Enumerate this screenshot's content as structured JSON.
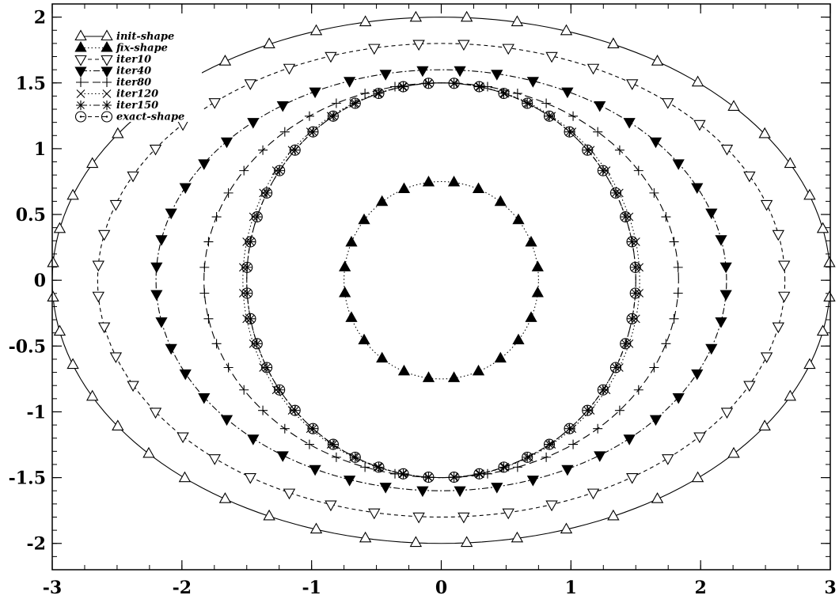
{
  "chart_data": {
    "type": "line",
    "title": "",
    "xlabel": "",
    "ylabel": "",
    "xlim": [
      -3,
      3
    ],
    "ylim": [
      -2.2,
      2.1
    ],
    "x_ticks": [
      "-3",
      "-2",
      "-1",
      "0",
      "1",
      "2",
      "3"
    ],
    "y_ticks": [
      "2",
      "1.5",
      "1",
      "0.5",
      "0",
      "-0.5",
      "-1",
      "-1.5",
      "-2"
    ],
    "legend_position": "top-left",
    "series": [
      {
        "name": "init-shape",
        "shape": "ellipse",
        "center": [
          0,
          0
        ],
        "a": 3.0,
        "b": 2.0,
        "n_points": 48,
        "marker": "triangle-up-open",
        "line": "solid",
        "color": "#000000"
      },
      {
        "name": "fix-shape",
        "shape": "ellipse",
        "center": [
          0,
          0
        ],
        "a": 0.75,
        "b": 0.75,
        "n_points": 24,
        "marker": "triangle-up-filled",
        "line": "dotted",
        "color": "#000000"
      },
      {
        "name": "iter10",
        "shape": "ellipse",
        "center": [
          0,
          0
        ],
        "a": 2.65,
        "b": 1.8,
        "n_points": 48,
        "marker": "triangle-down-open",
        "line": "dashed",
        "color": "#000000"
      },
      {
        "name": "iter40",
        "shape": "ellipse",
        "center": [
          0,
          0
        ],
        "a": 2.2,
        "b": 1.6,
        "n_points": 48,
        "marker": "triangle-down-filled",
        "line": "dashdot",
        "color": "#000000"
      },
      {
        "name": "iter80",
        "shape": "ellipse",
        "center": [
          0,
          0
        ],
        "a": 1.83,
        "b": 1.5,
        "n_points": 48,
        "marker": "plus",
        "line": "longdash",
        "color": "#000000"
      },
      {
        "name": "iter120",
        "shape": "ellipse",
        "center": [
          0,
          0
        ],
        "a": 1.53,
        "b": 1.5,
        "n_points": 48,
        "marker": "cross",
        "line": "dotted",
        "color": "#000000"
      },
      {
        "name": "iter150",
        "shape": "ellipse",
        "center": [
          0,
          0
        ],
        "a": 1.5,
        "b": 1.5,
        "n_points": 48,
        "marker": "star",
        "line": "dashdot",
        "color": "#000000"
      },
      {
        "name": "exact-shape",
        "shape": "ellipse",
        "center": [
          0,
          0
        ],
        "a": 1.5,
        "b": 1.5,
        "n_points": 48,
        "marker": "circle-open",
        "line": "dashed",
        "color": "#000000"
      }
    ]
  }
}
